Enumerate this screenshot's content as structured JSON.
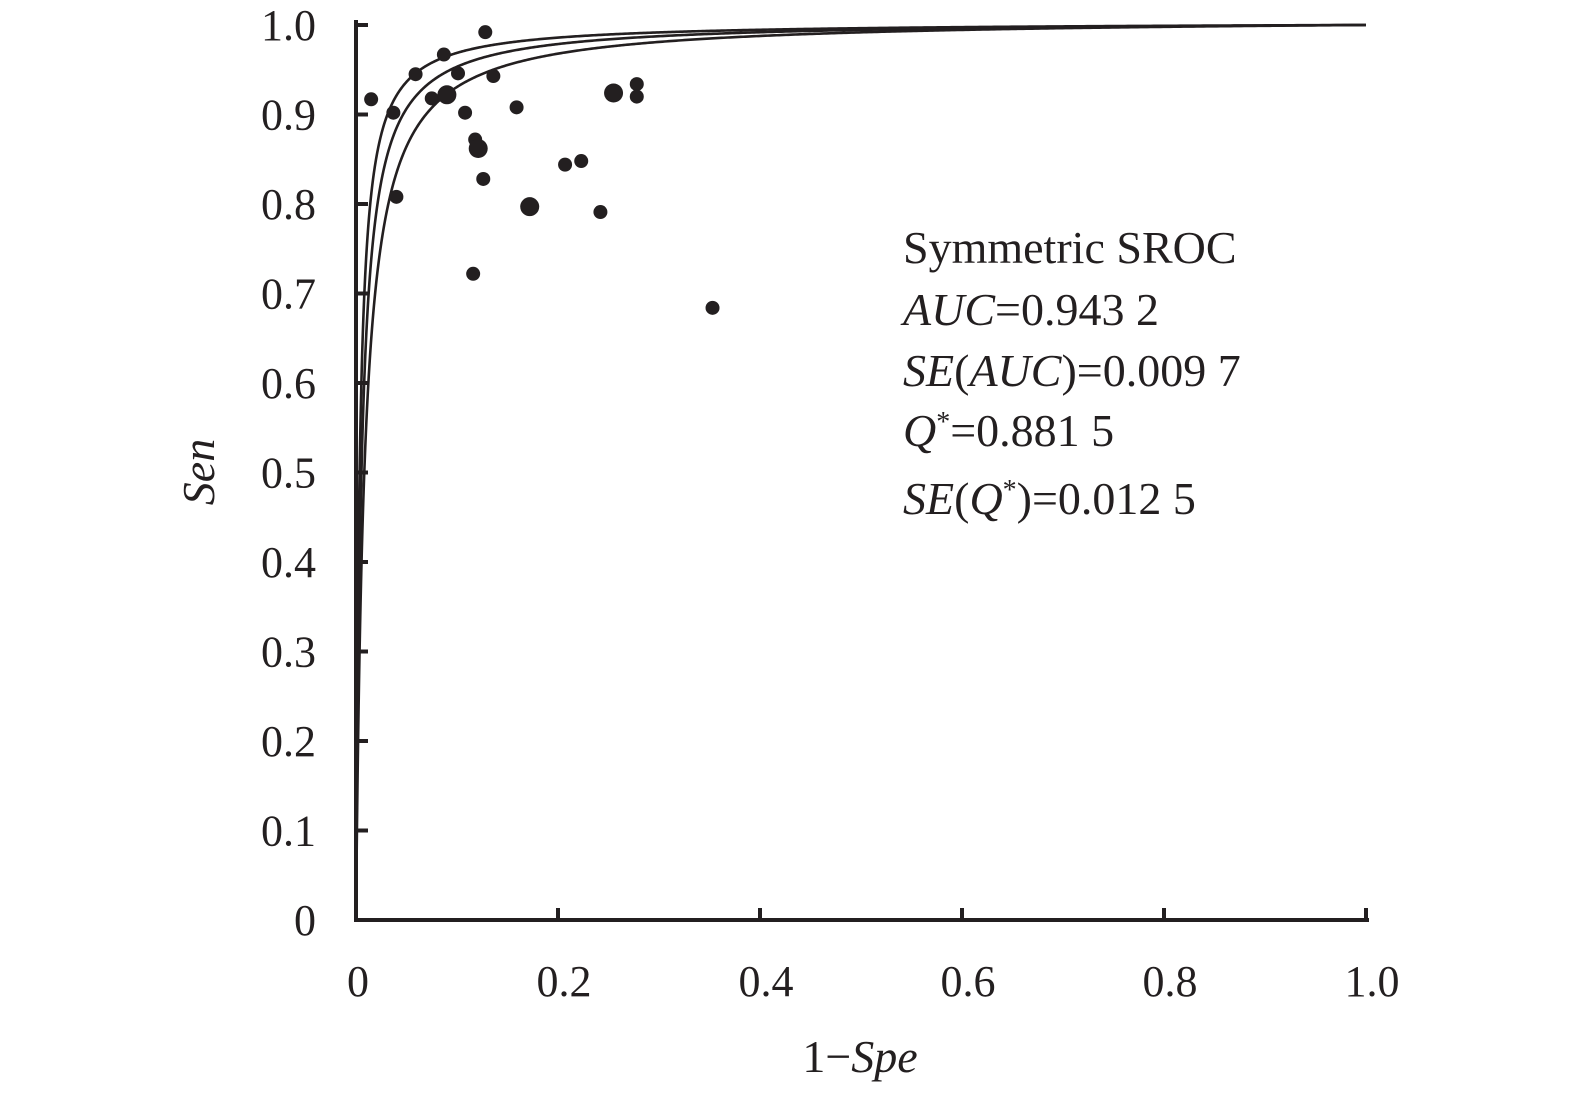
{
  "chart_data": {
    "type": "scatter",
    "xlabel_parts": [
      {
        "t": "1−",
        "i": false
      },
      {
        "t": "Spe",
        "i": true
      }
    ],
    "ylabel": "Sen",
    "xlim": [
      0,
      1.0
    ],
    "ylim": [
      0,
      1.0
    ],
    "xticks": [
      "0",
      "0.2",
      "0.4",
      "0.6",
      "0.8",
      "1.0"
    ],
    "yticks": [
      "0",
      "0.1",
      "0.2",
      "0.3",
      "0.4",
      "0.5",
      "0.6",
      "0.7",
      "0.8",
      "0.9",
      "1.0"
    ],
    "annotation": {
      "title": "Symmetric SROC",
      "lines": [
        [
          {
            "t": "AUC",
            "i": true
          },
          {
            "t": "=0.943 2"
          }
        ],
        [
          {
            "t": "SE",
            "i": true
          },
          {
            "t": "("
          },
          {
            "t": "AUC",
            "i": true
          },
          {
            "t": ")=0.009 7"
          }
        ],
        [
          {
            "t": "Q",
            "i": true
          },
          {
            "t": "*",
            "sup": true
          },
          {
            "t": "=0.881 5"
          }
        ],
        [
          {
            "t": "SE",
            "i": true
          },
          {
            "t": "("
          },
          {
            "t": "Q",
            "i": true
          },
          {
            "t": "*",
            "sup": true
          },
          {
            "t": ")=0.012 5"
          }
        ]
      ]
    },
    "points": [
      {
        "x": 0.015,
        "y": 0.917,
        "big": false
      },
      {
        "x": 0.037,
        "y": 0.902,
        "big": false
      },
      {
        "x": 0.04,
        "y": 0.808,
        "big": false
      },
      {
        "x": 0.059,
        "y": 0.945,
        "big": false
      },
      {
        "x": 0.075,
        "y": 0.918,
        "big": false
      },
      {
        "x": 0.087,
        "y": 0.967,
        "big": false
      },
      {
        "x": 0.09,
        "y": 0.922,
        "big": true
      },
      {
        "x": 0.101,
        "y": 0.946,
        "big": false
      },
      {
        "x": 0.108,
        "y": 0.902,
        "big": false
      },
      {
        "x": 0.116,
        "y": 0.722,
        "big": false
      },
      {
        "x": 0.118,
        "y": 0.872,
        "big": false
      },
      {
        "x": 0.121,
        "y": 0.862,
        "big": true
      },
      {
        "x": 0.126,
        "y": 0.828,
        "big": false
      },
      {
        "x": 0.128,
        "y": 0.992,
        "big": false
      },
      {
        "x": 0.136,
        "y": 0.943,
        "big": false
      },
      {
        "x": 0.159,
        "y": 0.908,
        "big": false
      },
      {
        "x": 0.172,
        "y": 0.797,
        "big": true
      },
      {
        "x": 0.207,
        "y": 0.844,
        "big": false
      },
      {
        "x": 0.223,
        "y": 0.848,
        "big": false
      },
      {
        "x": 0.242,
        "y": 0.791,
        "big": false
      },
      {
        "x": 0.255,
        "y": 0.924,
        "big": true
      },
      {
        "x": 0.278,
        "y": 0.934,
        "big": false
      },
      {
        "x": 0.278,
        "y": 0.92,
        "big": false
      },
      {
        "x": 0.353,
        "y": 0.684,
        "big": false
      }
    ],
    "curves_dor": [
      280,
      184,
      121
    ]
  }
}
